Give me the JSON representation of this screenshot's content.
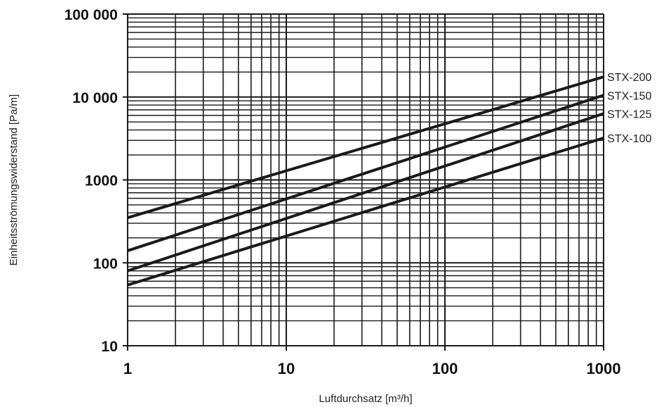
{
  "chart_data": {
    "type": "line",
    "x_scale": "log",
    "y_scale": "log",
    "xlim": [
      1,
      1000
    ],
    "ylim": [
      10,
      100000
    ],
    "grid": true,
    "xlabel": "Luftdurchsatz [m³/h]",
    "ylabel": "Einheitsströmungswiderstand [Pa/m]",
    "x_ticks": [
      1,
      10,
      100,
      1000
    ],
    "x_tick_labels": [
      "1",
      "10",
      "100",
      "1000"
    ],
    "y_ticks": [
      10,
      100,
      1000,
      10000,
      100000
    ],
    "y_tick_labels": [
      "10",
      "100",
      "1000",
      "10 000",
      "100 000"
    ],
    "series": [
      {
        "name": "STX-200",
        "x": [
          1,
          1000
        ],
        "y": [
          350,
          17500
        ]
      },
      {
        "name": "STX-150",
        "x": [
          1,
          1000
        ],
        "y": [
          140,
          10500
        ]
      },
      {
        "name": "STX-125",
        "x": [
          1,
          1000
        ],
        "y": [
          80,
          6300
        ]
      },
      {
        "name": "STX-100",
        "x": [
          1,
          1000
        ],
        "y": [
          54,
          3200
        ]
      }
    ],
    "colors": {
      "lines": "#1a1a1a",
      "grid": "#1a1a1a"
    }
  }
}
